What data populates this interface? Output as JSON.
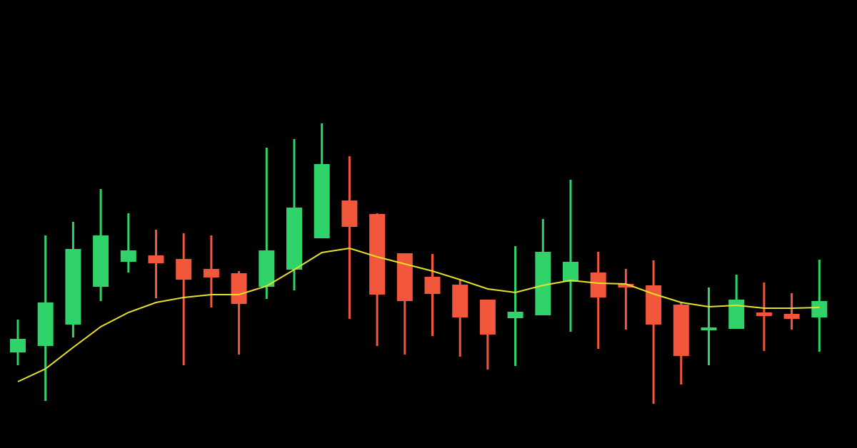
{
  "chart_data": {
    "type": "candlestick",
    "open": [
      134,
      143,
      173,
      226,
      261,
      270,
      265,
      251,
      245,
      226,
      250,
      294,
      347,
      328,
      273,
      240,
      229,
      208,
      182,
      186,
      233,
      246,
      230,
      228,
      201,
      165,
      167,
      190,
      188,
      183
    ],
    "high": [
      180,
      298,
      317,
      363,
      329,
      306,
      301,
      298,
      248,
      421,
      433,
      455,
      409,
      329,
      273,
      272,
      235,
      208,
      283,
      321,
      376,
      275,
      251,
      263,
      203,
      225,
      243,
      232,
      217,
      264
    ],
    "low": [
      116,
      66,
      155,
      206,
      246,
      210,
      116,
      197,
      131,
      209,
      221,
      294,
      181,
      143,
      131,
      157,
      128,
      110,
      115,
      186,
      163,
      139,
      166,
      62,
      89,
      116,
      167,
      136,
      166,
      135
    ],
    "close": [
      153,
      204,
      279,
      298,
      277,
      259,
      236,
      239,
      202,
      277,
      337,
      398,
      310,
      215,
      206,
      216,
      183,
      159,
      191,
      275,
      261,
      211,
      225,
      173,
      129,
      169,
      208,
      185,
      181,
      206
    ],
    "up_color": "#2fd36a",
    "down_color": "#f2563b",
    "moving_average": {
      "color": "#e6e02a",
      "values": [
        93,
        111,
        141,
        170,
        190,
        204,
        211,
        215,
        215,
        227,
        250,
        274,
        280,
        268,
        258,
        248,
        236,
        223,
        218,
        228,
        235,
        231,
        230,
        216,
        204,
        198,
        200,
        196,
        196,
        197
      ]
    },
    "ylim": [
      0,
      628
    ]
  }
}
